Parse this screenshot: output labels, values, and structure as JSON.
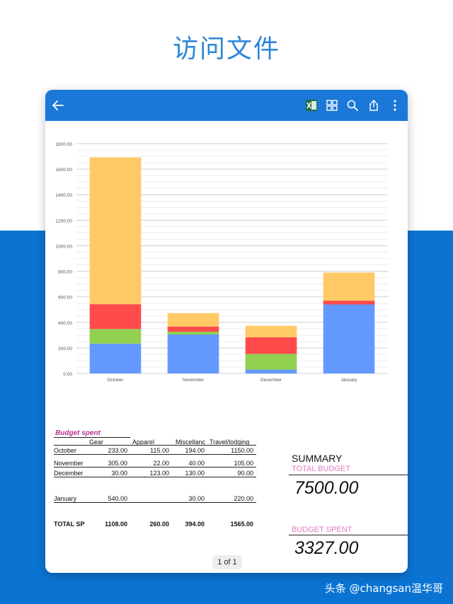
{
  "hero": {
    "title": "访问文件"
  },
  "toolbar": {
    "back_icon": "arrow-left-icon",
    "excel_icon": "excel-icon",
    "grid_icon": "grid-view-icon",
    "search_icon": "search-icon",
    "share_icon": "share-icon",
    "more_icon": "more-vertical-icon"
  },
  "chart_data": {
    "type": "bar",
    "stacked": true,
    "categories": [
      "October",
      "November",
      "December",
      "January"
    ],
    "series": [
      {
        "color": "#6399ff",
        "values": [
          233,
          305,
          30,
          540
        ]
      },
      {
        "color": "#92d050",
        "values": [
          115,
          22,
          123,
          0
        ]
      },
      {
        "color": "#ff4b4b",
        "values": [
          194,
          40,
          130,
          30
        ]
      },
      {
        "color": "#ffc966",
        "values": [
          1150,
          105,
          90,
          220
        ]
      }
    ],
    "ylim": [
      0,
      1800
    ],
    "yticks": [
      "0.00",
      "200.00",
      "400.00",
      "600.00",
      "800.00",
      "1000.00",
      "1200.00",
      "1400.00",
      "1600.00",
      "1800.00"
    ],
    "grid": true
  },
  "sheet": {
    "title": "Budget spent",
    "headers": [
      "Gear",
      "Apparel",
      "Miscellanc",
      "Travel/lodging"
    ],
    "rows": [
      {
        "label": "October",
        "values": [
          "233.00",
          "115.00",
          "194.00",
          "1150.00"
        ]
      },
      {
        "label": "November",
        "values": [
          "305.00",
          "22.00",
          "40.00",
          "105.00"
        ]
      },
      {
        "label": "December",
        "values": [
          "30.00",
          "123.00",
          "130.00",
          "90.00"
        ]
      },
      {
        "label": "January",
        "values": [
          "540.00",
          "",
          "30.00",
          "220.00"
        ]
      }
    ],
    "total": {
      "label": "TOTAL SP",
      "values": [
        "1108.00",
        "260.00",
        "394.00",
        "1565.00"
      ]
    }
  },
  "summary": {
    "title": "SUMMARY",
    "total_budget_label": "TOTAL BUDGET",
    "total_budget_value": "7500.00",
    "budget_spent_label": "BUDGET SPENT",
    "budget_spent_value": "3327.00"
  },
  "pager": {
    "label": "1 of 1"
  },
  "watermark": {
    "text": "头条 @changsan温华哥"
  }
}
